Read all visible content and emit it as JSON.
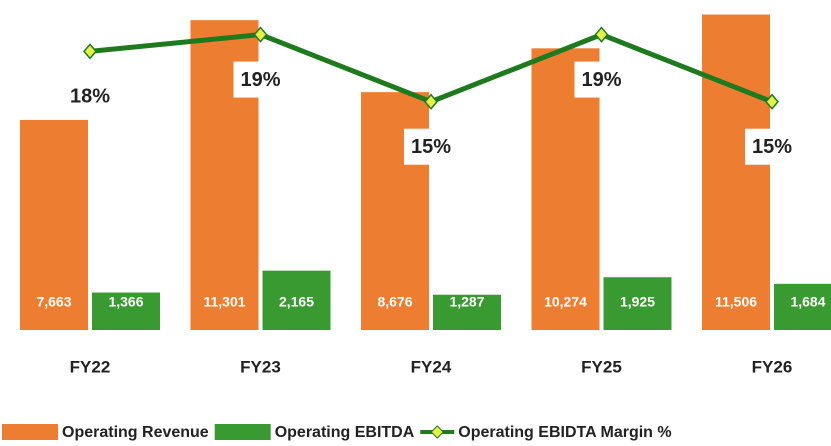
{
  "chart_data": {
    "type": "bar-line",
    "categories": [
      "FY22",
      "FY23",
      "FY24",
      "FY25",
      "FY26"
    ],
    "series": [
      {
        "name": "Operating Revenue",
        "color": "#ed7d31",
        "values": [
          7663,
          11301,
          8676,
          10274,
          11506
        ],
        "value_labels": [
          "7,663",
          "11,301",
          "8,676",
          "10,274",
          "11,506"
        ]
      },
      {
        "name": "Operating EBITDA",
        "color": "#3a9a32",
        "values": [
          1366,
          2165,
          1287,
          1925,
          1684
        ],
        "value_labels": [
          "1,366",
          "2,165",
          "1,287",
          "1,925",
          "1,684"
        ]
      },
      {
        "name": "Operating EBIDTA Margin %",
        "color": "#1f7a1f",
        "marker_color": "#e6f04a",
        "type": "line",
        "axis": "y2",
        "values": [
          18,
          19,
          15,
          19,
          15
        ],
        "value_labels": [
          "18%",
          "19%",
          "15%",
          "19%",
          "15%"
        ]
      }
    ],
    "ylim": [
      0,
      12000
    ],
    "y2lim": [
      1.4,
      21
    ],
    "legend": "bottom"
  }
}
